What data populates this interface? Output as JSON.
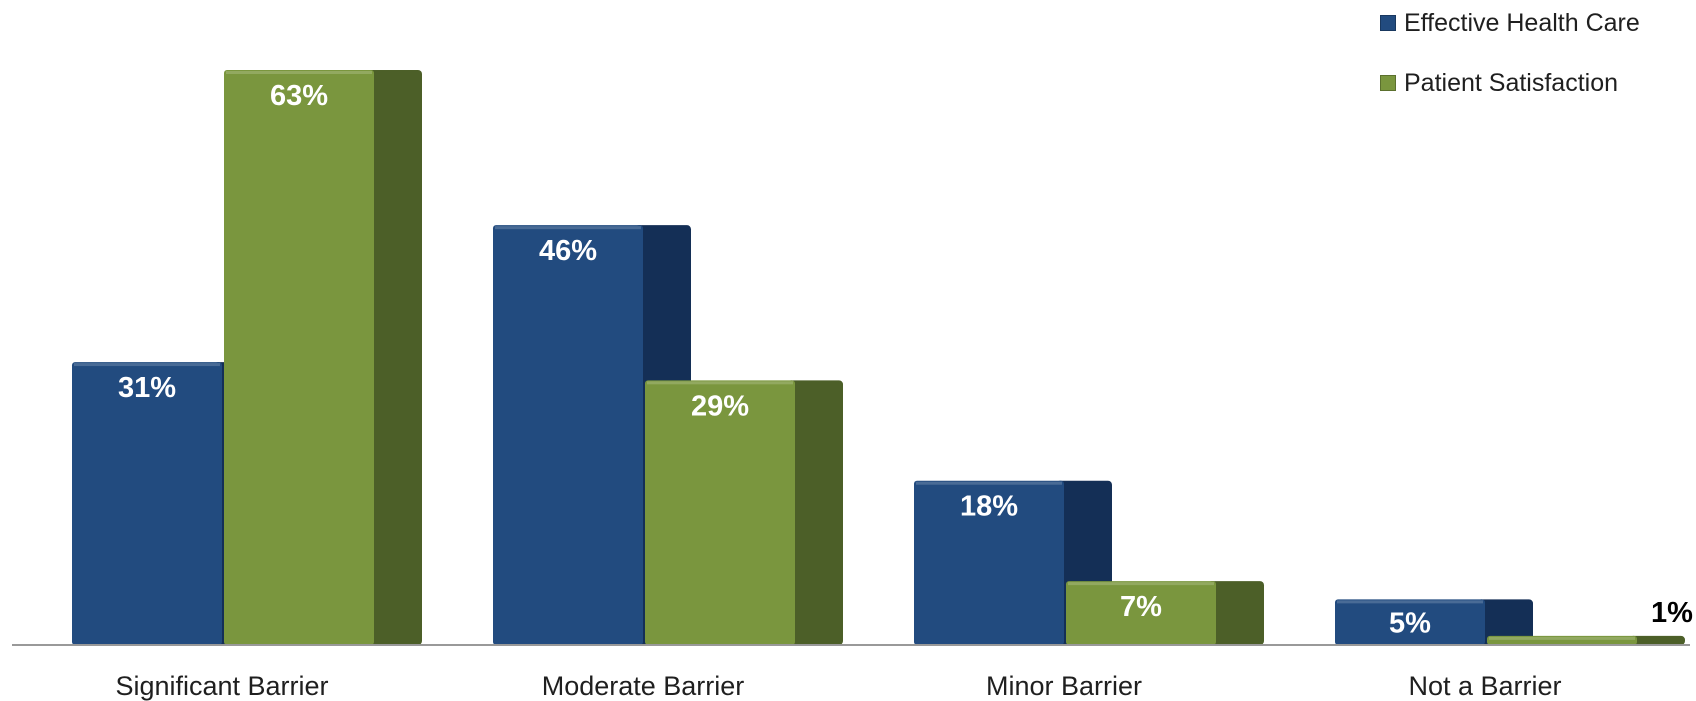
{
  "chart_data": {
    "type": "bar",
    "title": "",
    "xlabel": "",
    "ylabel": "",
    "categories": [
      "Significant Barrier",
      "Moderate Barrier",
      "Minor Barrier",
      "Not a Barrier"
    ],
    "series": [
      {
        "name": "Effective Health Care",
        "values": [
          31,
          46,
          18,
          5
        ],
        "labels": [
          "31%",
          "46%",
          "18%",
          "5%"
        ]
      },
      {
        "name": "Patient Satisfaction",
        "values": [
          63,
          29,
          7,
          1
        ],
        "labels": [
          "63%",
          "29%",
          "7%",
          "1%"
        ]
      }
    ],
    "ylim": [
      0,
      63
    ],
    "grid": false,
    "legend_position": "top-right",
    "colors": {
      "series": [
        "#224b7f",
        "#7a963e"
      ],
      "series_dark": [
        "#142f56",
        "#4c5f28"
      ],
      "axis": "#999999"
    }
  }
}
